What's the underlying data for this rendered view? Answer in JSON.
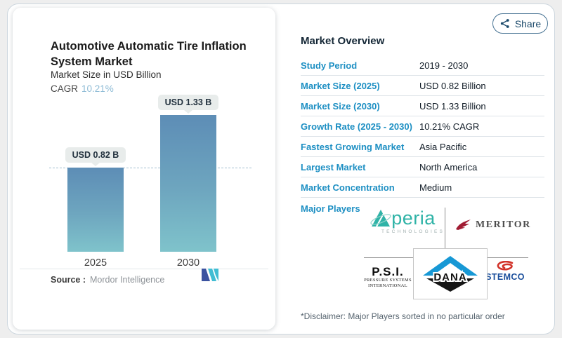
{
  "share": {
    "label": "Share"
  },
  "chart_panel": {
    "title_line1": "Automotive Automatic Tire Inflation",
    "title_line2": "System Market",
    "subtitle": "Market Size in USD Billion",
    "cagr_label": "CAGR",
    "cagr_value": "10.21%",
    "source_label": "Source :",
    "source_value": "Mordor Intelligence"
  },
  "chart_data": {
    "type": "bar",
    "title": "Automotive Automatic Tire Inflation System Market",
    "ylabel": "Market Size in USD Billion",
    "categories": [
      "2025",
      "2030"
    ],
    "values": [
      0.82,
      1.33
    ],
    "bar_labels": [
      "USD 0.82 B",
      "USD 1.33 B"
    ],
    "cagr": "10.21%",
    "reference_line": 0.82,
    "ylim": [
      0,
      1.5
    ],
    "grid": false,
    "colors": {
      "bar_gradient_top": "#5d8db6",
      "bar_gradient_bottom": "#7fc3cb",
      "reference_dash": "#a3bfcf"
    }
  },
  "overview": {
    "heading": "Market Overview",
    "rows": [
      {
        "label": "Study Period",
        "value": "2019 - 2030"
      },
      {
        "label": "Market Size (2025)",
        "value": "USD 0.82 Billion"
      },
      {
        "label": "Market Size (2030)",
        "value": "USD 1.33 Billion"
      },
      {
        "label": "Growth Rate (2025 - 2030)",
        "value": "10.21% CAGR"
      },
      {
        "label": "Fastest Growing Market",
        "value": "Asia Pacific"
      },
      {
        "label": "Largest Market",
        "value": "North America"
      },
      {
        "label": "Market Concentration",
        "value": "Medium"
      }
    ],
    "major_players_label": "Major Players",
    "disclaimer": "*Disclaimer: Major Players sorted in no particular order"
  },
  "logos": {
    "aperia_name": "peria",
    "aperia_sub": "TECHNOLOGIES",
    "meritor": "MERITOR",
    "psi_title": "P.S.I.",
    "psi_sub1": "PRESSURE SYSTEMS",
    "psi_sub2": "INTERNATIONAL",
    "dana": "DANA",
    "stemco": "STEMCO"
  },
  "colors": {
    "accent_blue": "#1d8fc3",
    "heading_navy": "#132635",
    "cagr_light_blue": "#8fbcd6",
    "share_navy": "#1c4a6b",
    "aperia_teal": "#2fb3a7",
    "meritor_crimson": "#a11c33",
    "dana_blue": "#1798d5",
    "stemco_red": "#d2342a",
    "stemco_blue": "#1b4f9c",
    "mi_logo_blue": "#3b53a0",
    "mi_logo_teal": "#41bdd3"
  }
}
